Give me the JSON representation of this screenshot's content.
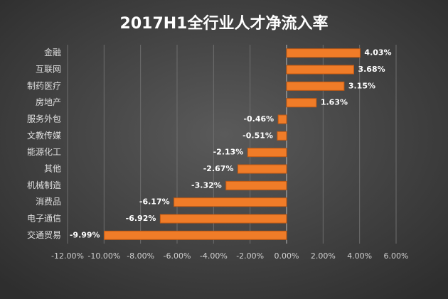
{
  "chart_data": {
    "type": "bar",
    "orientation": "horizontal",
    "title": "2017H1全行业人才净流入率",
    "categories": [
      "金融",
      "互联网",
      "制药医疗",
      "房地产",
      "服务外包",
      "文教传媒",
      "能源化工",
      "其他",
      "机械制造",
      "消费品",
      "电子通信",
      "交通贸易"
    ],
    "values": [
      4.03,
      3.68,
      3.15,
      1.63,
      -0.46,
      -0.51,
      -2.13,
      -2.67,
      -3.32,
      -6.17,
      -6.92,
      -9.99
    ],
    "value_labels": [
      "4.03%",
      "3.68%",
      "3.15%",
      "1.63%",
      "-0.46%",
      "-0.51%",
      "-2.13%",
      "-2.67%",
      "-3.32%",
      "-6.17%",
      "-6.92%",
      "-9.99%"
    ],
    "color": "#f07c28",
    "xlim": [
      -12,
      6
    ],
    "xticks": [
      {
        "value": -12,
        "label": "-12.00%"
      },
      {
        "value": -10,
        "label": "-10.00%"
      },
      {
        "value": -8,
        "label": "-8.00%"
      },
      {
        "value": -6,
        "label": "-6.00%"
      },
      {
        "value": -4,
        "label": "-4.00%"
      },
      {
        "value": -2,
        "label": "-2.00%"
      },
      {
        "value": 0,
        "label": "0.00%"
      },
      {
        "value": 2,
        "label": "2.00%"
      },
      {
        "value": 4,
        "label": "4.00%"
      },
      {
        "value": 6,
        "label": "6.00%"
      }
    ],
    "grid": true
  }
}
